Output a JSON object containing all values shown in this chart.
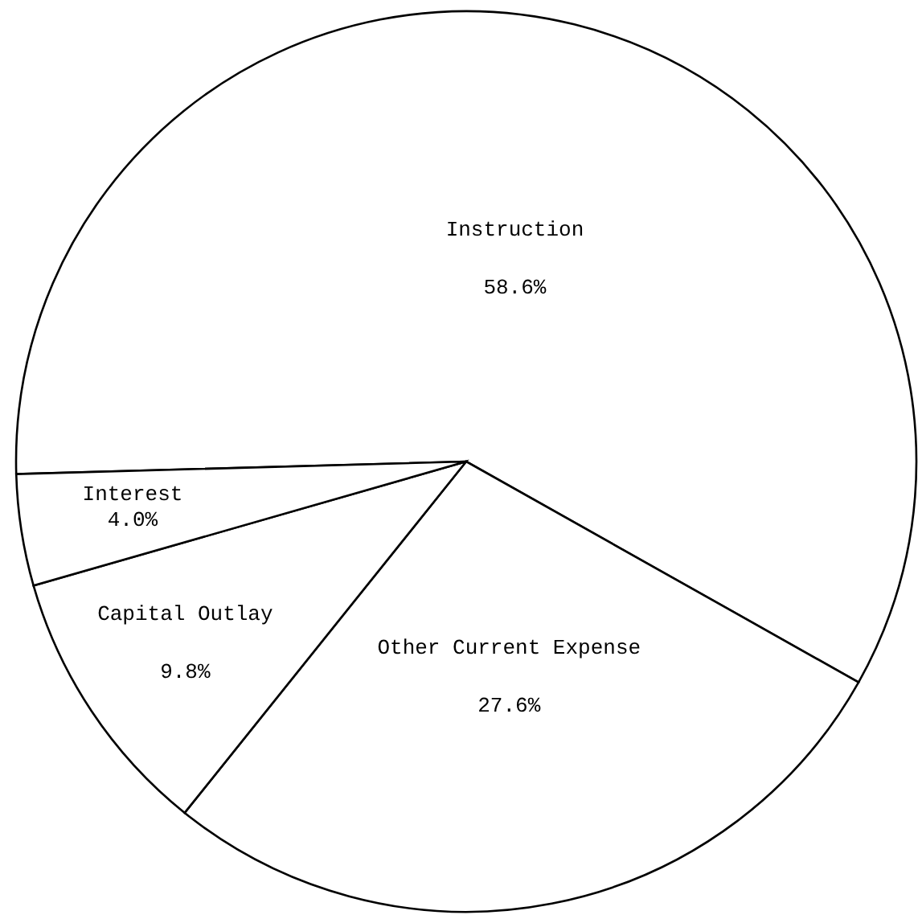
{
  "chart_data": {
    "type": "pie",
    "categories": [
      "Instruction",
      "Other Current Expense",
      "Capital Outlay",
      "Interest"
    ],
    "values": [
      58.6,
      27.6,
      9.8,
      4.0
    ],
    "colors": [
      "#ffffff",
      "#ffffff",
      "#ffffff",
      "#ffffff"
    ],
    "value_labels": [
      "58.6%",
      "27.6%",
      "9.8%",
      "4.0%"
    ]
  }
}
